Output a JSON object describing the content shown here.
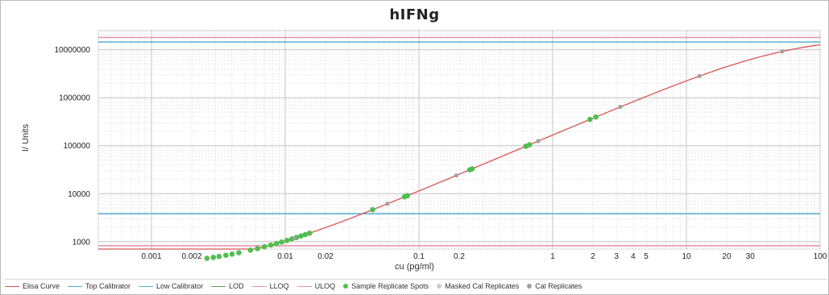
{
  "chart_data": {
    "type": "scatter",
    "title": "hIFNg",
    "xlabel": "cu (pg/ml)",
    "ylabel": "I/ Units",
    "x_scale": "log",
    "y_scale": "log",
    "xlim": [
      0.0004,
      100
    ],
    "ylim": [
      700,
      25000000
    ],
    "x_ticks": [
      {
        "v": 0.001,
        "label": "0.001"
      },
      {
        "v": 0.002,
        "label": "0.002"
      },
      {
        "v": 0.01,
        "label": "0.01"
      },
      {
        "v": 0.02,
        "label": "0.02"
      },
      {
        "v": 0.1,
        "label": "0.1"
      },
      {
        "v": 0.2,
        "label": "0.2"
      },
      {
        "v": 1,
        "label": "1"
      },
      {
        "v": 2,
        "label": "2"
      },
      {
        "v": 3,
        "label": "3"
      },
      {
        "v": 4,
        "label": "4"
      },
      {
        "v": 5,
        "label": "5"
      },
      {
        "v": 10,
        "label": "10"
      },
      {
        "v": 20,
        "label": "20"
      },
      {
        "v": 30,
        "label": "30"
      },
      {
        "v": 100,
        "label": "100"
      }
    ],
    "y_ticks": [
      {
        "v": 1000,
        "label": "1000"
      },
      {
        "v": 10000,
        "label": "10000"
      },
      {
        "v": 100000,
        "label": "100000"
      },
      {
        "v": 1000000,
        "label": "1000000"
      },
      {
        "v": 10000000,
        "label": "10000000"
      }
    ],
    "grid": true,
    "legend_position": "bottom",
    "series": [
      {
        "name": "Elisa Curve",
        "kind": "line",
        "color": "#d9534f",
        "curve": {
          "a": 300,
          "d": 19000000,
          "c": 55,
          "b": 1.18
        }
      },
      {
        "name": "Top Calibrator",
        "kind": "hline",
        "color": "#5aaed6",
        "y": 14500000
      },
      {
        "name": "Low Calibrator",
        "kind": "hline",
        "color": "#5aaed6",
        "y": 3800
      },
      {
        "name": "LOD",
        "kind": "hline",
        "color": "#54a854",
        "y": null
      },
      {
        "name": "LLOQ",
        "kind": "hline",
        "color": "#e88fb0",
        "y": 820
      },
      {
        "name": "ULOQ",
        "kind": "hline",
        "color": "#e88fb0",
        "y": 18000000
      },
      {
        "name": "Sample Replicate Spots",
        "kind": "points",
        "color": "#4fbf4f",
        "x": [
          0.0026,
          0.0029,
          0.0032,
          0.0036,
          0.004,
          0.0045,
          0.0055,
          0.0062,
          0.007,
          0.0078,
          0.0086,
          0.0094,
          0.0103,
          0.0112,
          0.0121,
          0.0131,
          0.0141,
          0.0152,
          0.045,
          0.078,
          0.082,
          0.24,
          0.25,
          0.63,
          0.67,
          1.9,
          2.1
        ]
      },
      {
        "name": "Masked Cal Replicates",
        "kind": "points",
        "color": "#cccccc",
        "x": []
      },
      {
        "name": "Cal Replicates",
        "kind": "points",
        "color": "#a0a0a0",
        "x": [
          0.0117,
          0.058,
          0.19,
          0.78,
          3.2,
          12.5,
          52
        ]
      }
    ]
  }
}
